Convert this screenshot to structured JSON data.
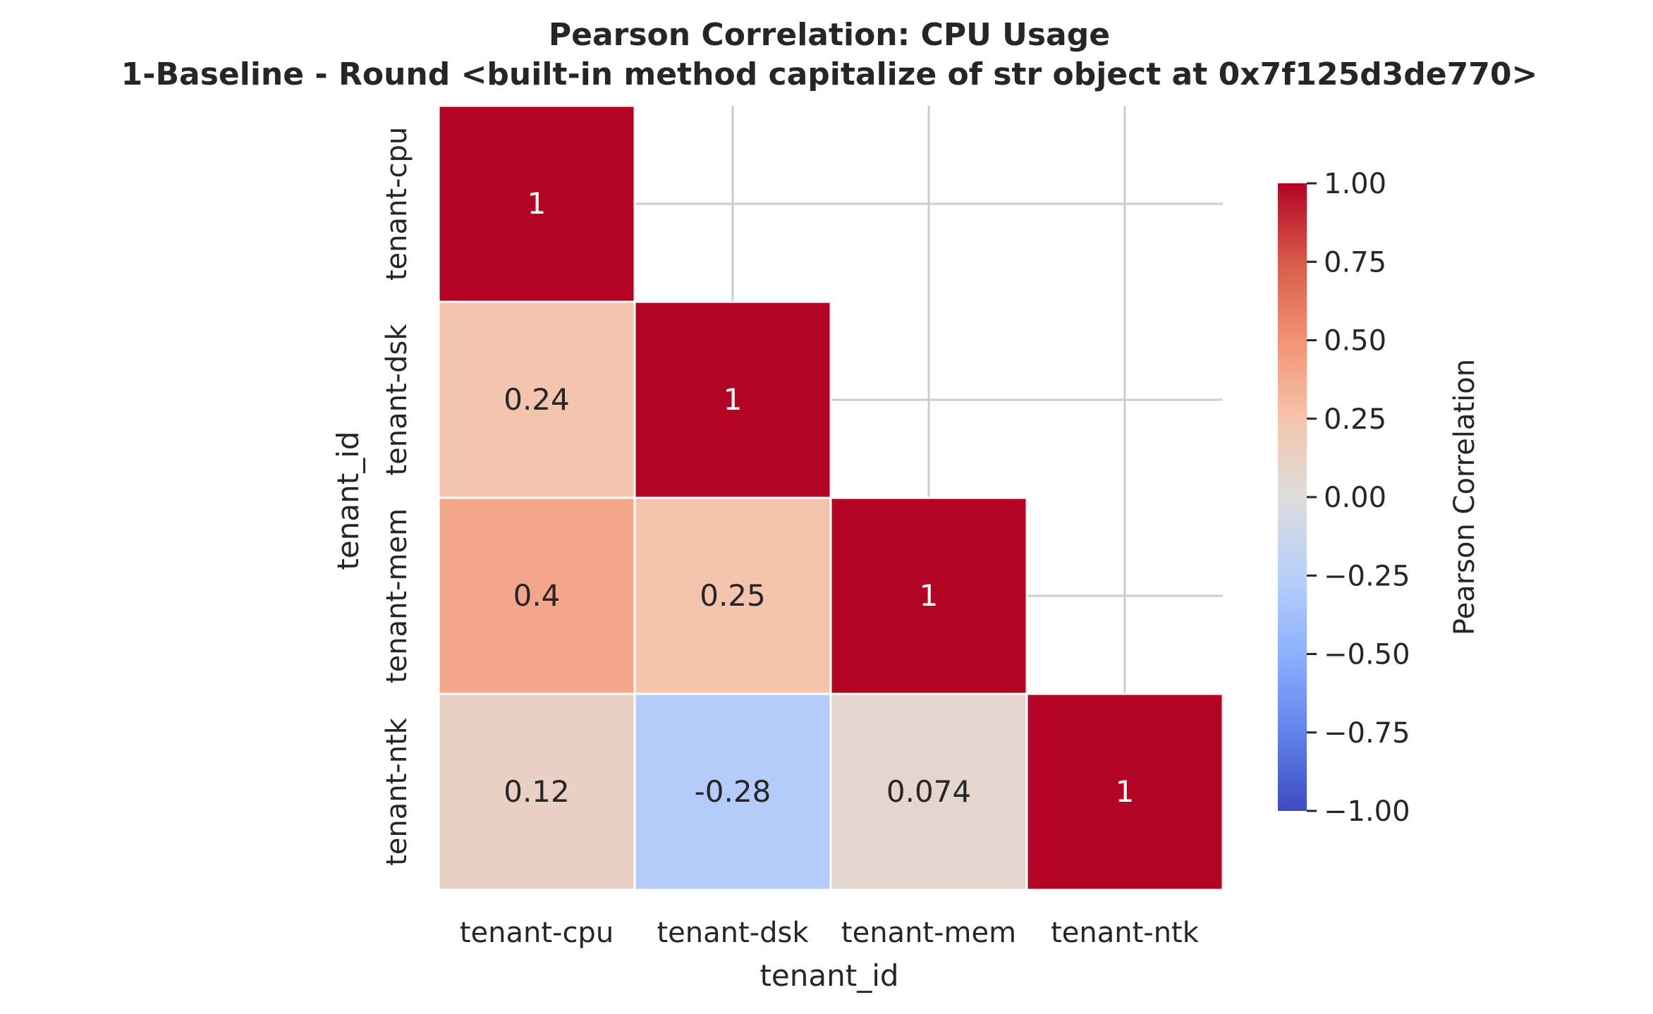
{
  "chart_data": {
    "type": "heatmap",
    "title": "Pearson Correlation: CPU Usage",
    "subtitle": "1-Baseline - Round <built-in method capitalize of str object at 0x7f125d3de770>",
    "xlabel": "tenant_id",
    "ylabel": "tenant_id",
    "categories": [
      "tenant-cpu",
      "tenant-dsk",
      "tenant-mem",
      "tenant-ntk"
    ],
    "matrix": [
      [
        1,
        null,
        null,
        null
      ],
      [
        0.24,
        1,
        null,
        null
      ],
      [
        0.4,
        0.25,
        1,
        null
      ],
      [
        0.12,
        -0.28,
        0.074,
        1
      ]
    ],
    "mask": "upper-triangle",
    "colormap": "coolwarm",
    "vmin": -1,
    "vmax": 1,
    "colorbar": {
      "label": "Pearson Correlation",
      "ticks": [
        "1.00",
        "0.75",
        "0.50",
        "0.25",
        "0.00",
        "−0.25",
        "−0.50",
        "−0.75",
        "−1.00"
      ],
      "tick_values": [
        1,
        0.75,
        0.5,
        0.25,
        0,
        -0.25,
        -0.5,
        -0.75,
        -1
      ]
    },
    "grid": true,
    "annotated": true
  }
}
